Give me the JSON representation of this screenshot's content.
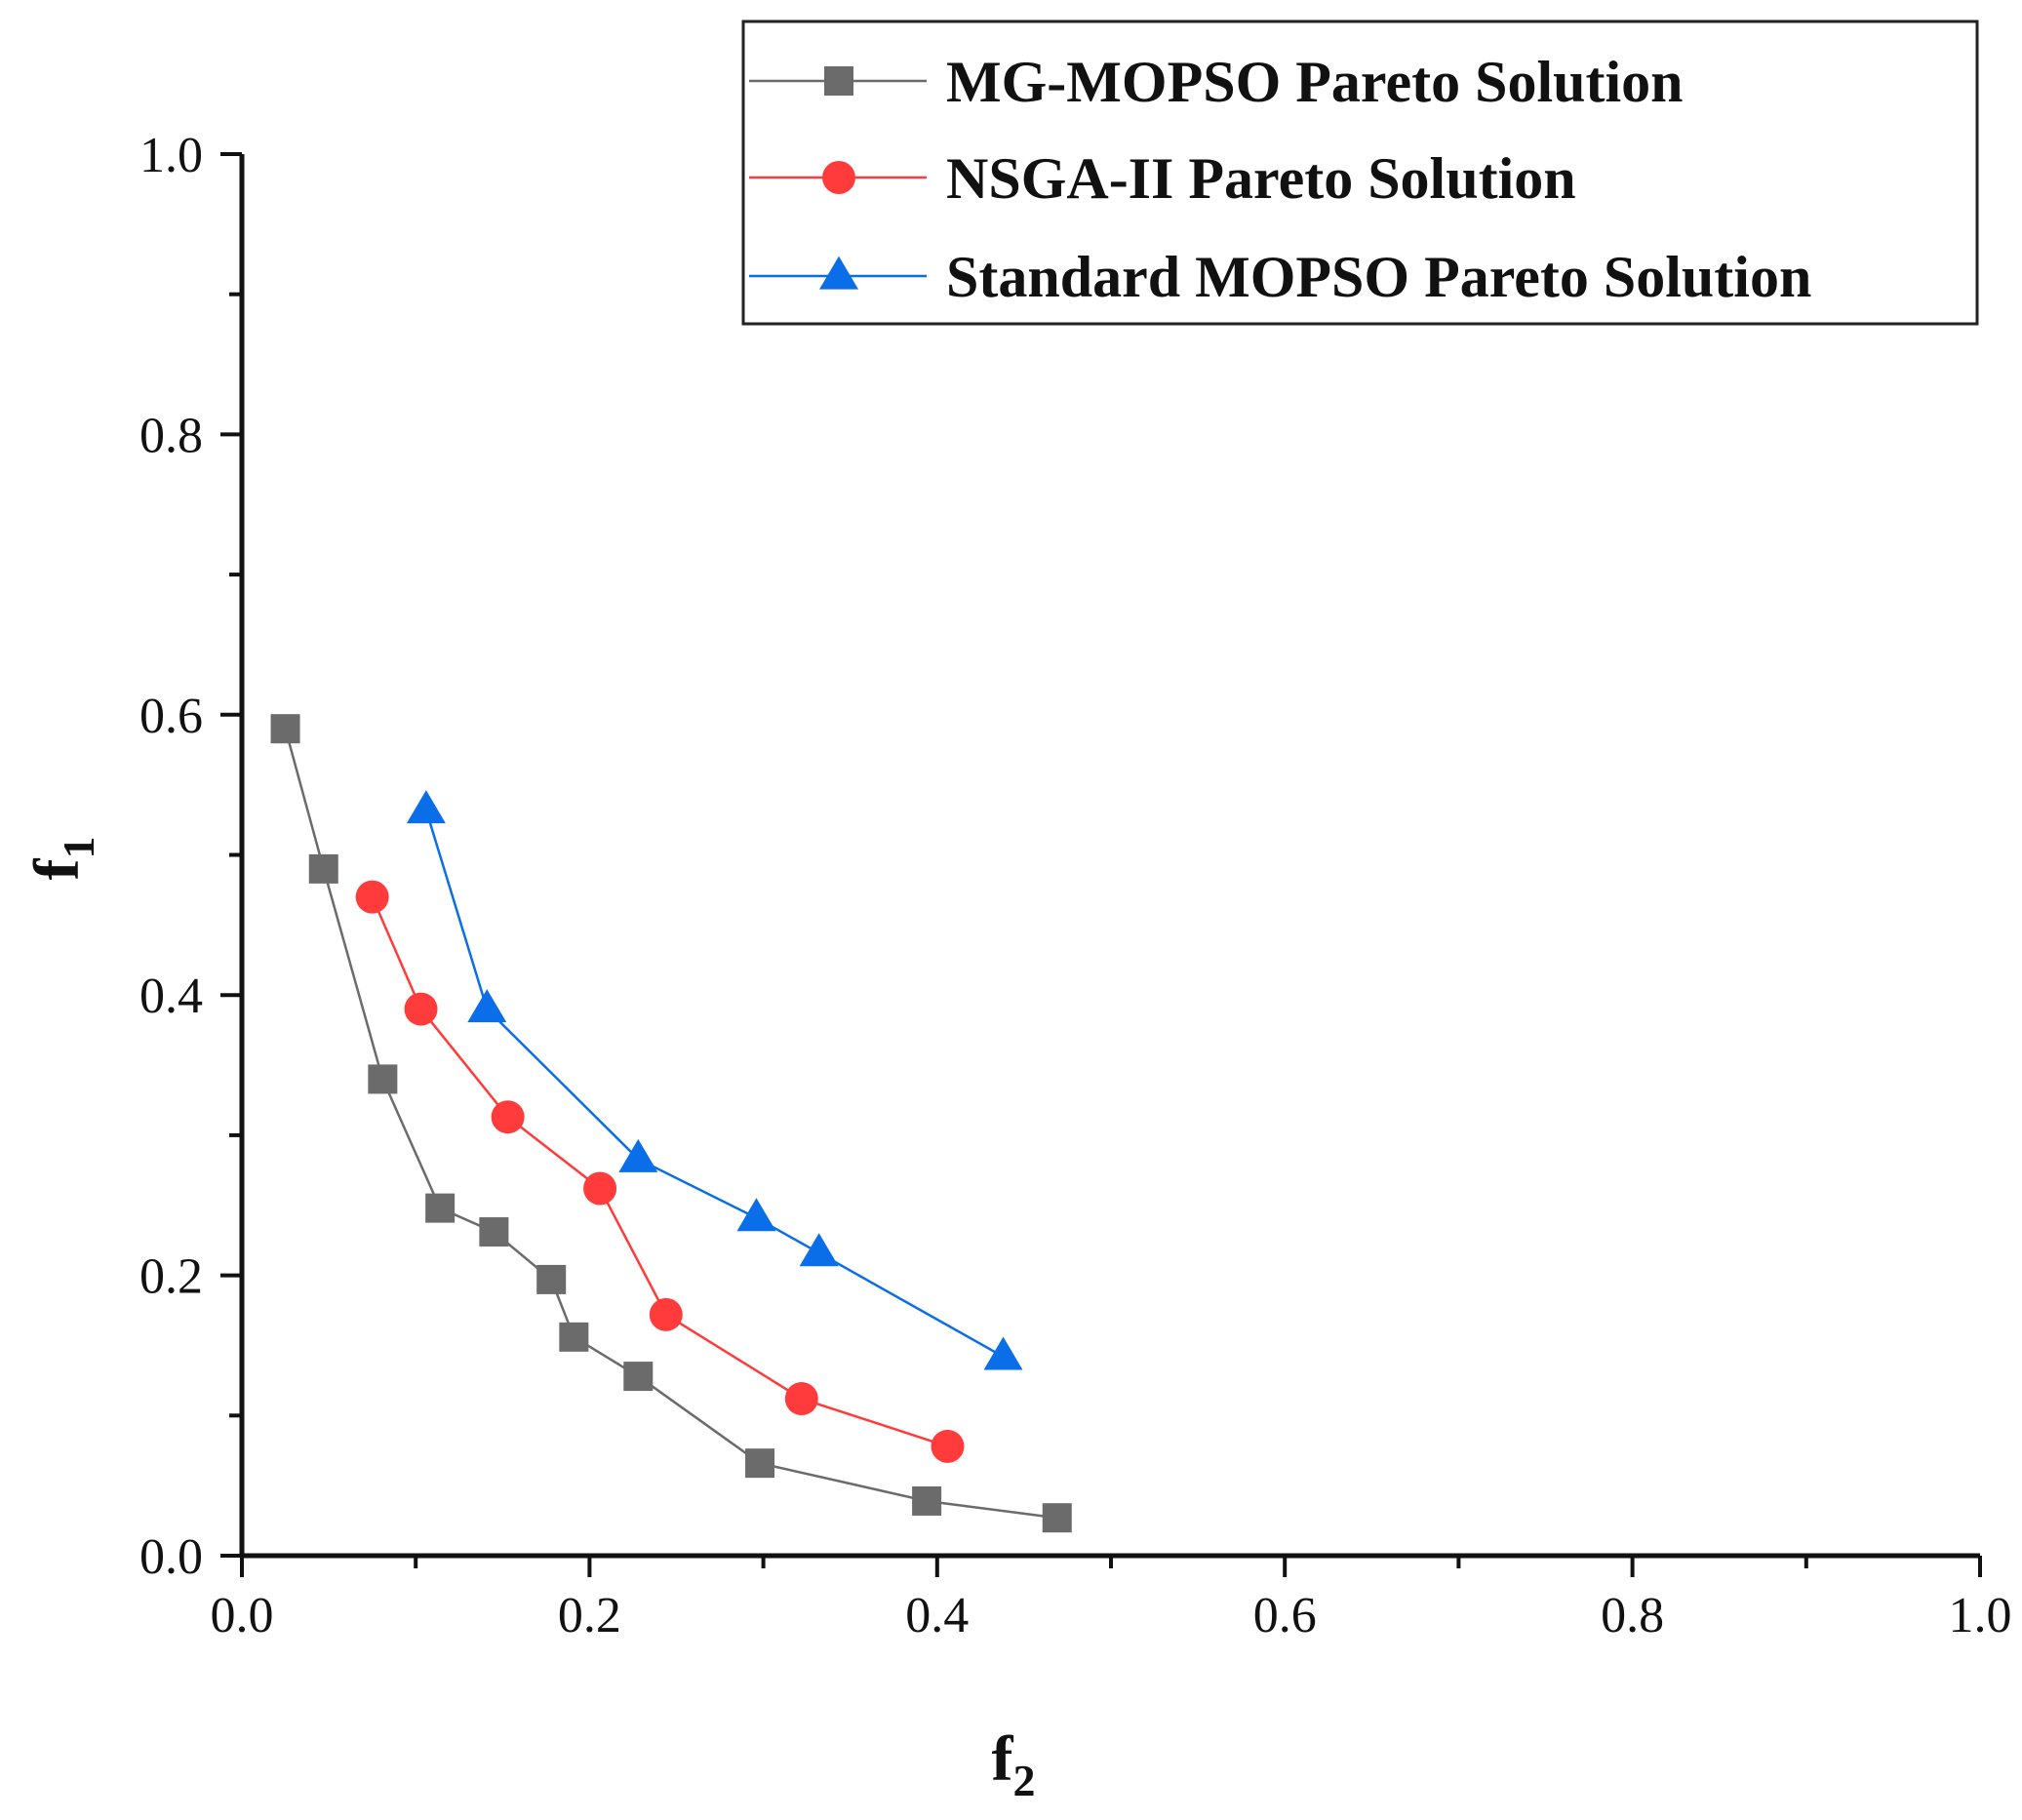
{
  "chart_data": {
    "type": "line",
    "title": "",
    "xlabel": {
      "base": "f",
      "sub": "2"
    },
    "ylabel": {
      "base": "f",
      "sub": "1"
    },
    "xlim": [
      0.0,
      1.0
    ],
    "ylim": [
      0.0,
      1.0
    ],
    "x_ticks": [
      "0.0",
      "0.2",
      "0.4",
      "0.6",
      "0.8",
      "1.0"
    ],
    "y_ticks": [
      "0.0",
      "0.2",
      "0.4",
      "0.6",
      "0.8",
      "1.0"
    ],
    "grid": false,
    "legend_position": "top-right",
    "series": [
      {
        "name": "MG-MOPSO Pareto Solution",
        "color": "#6b6b6b",
        "marker": "square",
        "points": [
          [
            0.025,
            0.59
          ],
          [
            0.047,
            0.49
          ],
          [
            0.081,
            0.34
          ],
          [
            0.114,
            0.248
          ],
          [
            0.145,
            0.231
          ],
          [
            0.178,
            0.197
          ],
          [
            0.191,
            0.156
          ],
          [
            0.228,
            0.128
          ],
          [
            0.298,
            0.066
          ],
          [
            0.394,
            0.039
          ],
          [
            0.469,
            0.027
          ]
        ]
      },
      {
        "name": "NSGA-II Pareto Solution",
        "color": "#ff3b3b",
        "marker": "circle",
        "points": [
          [
            0.075,
            0.47
          ],
          [
            0.103,
            0.39
          ],
          [
            0.153,
            0.313
          ],
          [
            0.206,
            0.262
          ],
          [
            0.244,
            0.172
          ],
          [
            0.322,
            0.112
          ],
          [
            0.406,
            0.078
          ]
        ]
      },
      {
        "name": "Standard MOPSO Pareto Solution",
        "color": "#0a6ee8",
        "marker": "triangle",
        "points": [
          [
            0.106,
            0.532
          ],
          [
            0.141,
            0.39
          ],
          [
            0.228,
            0.283
          ],
          [
            0.296,
            0.241
          ],
          [
            0.332,
            0.216
          ],
          [
            0.438,
            0.142
          ]
        ]
      }
    ]
  }
}
